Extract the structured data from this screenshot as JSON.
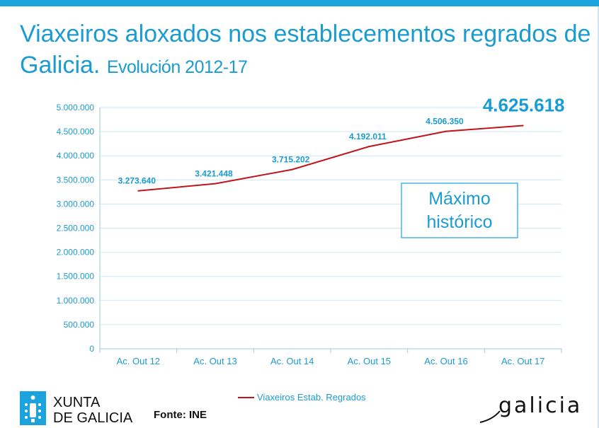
{
  "title": {
    "main": "Viaxeiros aloxados nos establecementos regrados de Galicia.",
    "sub": "Evolución 2012-17"
  },
  "chart_data": {
    "type": "line",
    "categories": [
      "Ac. Out 12",
      "Ac. Out 13",
      "Ac. Out 14",
      "Ac. Out 15",
      "Ac. Out 16",
      "Ac. Out 17"
    ],
    "series": [
      {
        "name": "Viaxeiros Estab. Regrados",
        "values": [
          3273640,
          3421448,
          3715202,
          4192011,
          4506350,
          4625618
        ],
        "labels": [
          "3.273.640",
          "3.421.448",
          "3.715.202",
          "4.192.011",
          "4.506.350",
          "4.625.618"
        ],
        "color": "#c0151c"
      }
    ],
    "ylim": [
      0,
      5000000
    ],
    "y_ticks": [
      0,
      500000,
      1000000,
      1500000,
      2000000,
      2500000,
      3000000,
      3500000,
      4000000,
      4500000,
      5000000
    ],
    "y_tick_labels": [
      "0",
      "500.000",
      "1.000.000",
      "1.500.000",
      "2.000.000",
      "2.500.000",
      "3.000.000",
      "3.500.000",
      "4.000.000",
      "4.500.000",
      "5.000.000"
    ],
    "grid": true,
    "legend_position": "bottom",
    "annotation": [
      "Máximo",
      "histórico"
    ]
  },
  "colors": {
    "accent": "#1aa3dc",
    "axis_text": "#1a9bd1",
    "grid": "#cde6f0",
    "line": "#c0151c"
  },
  "footer": {
    "xunta_line1": "XUNTA",
    "xunta_line2": "DE GALICIA",
    "source": "Fonte: INE",
    "brand": "galicia"
  }
}
